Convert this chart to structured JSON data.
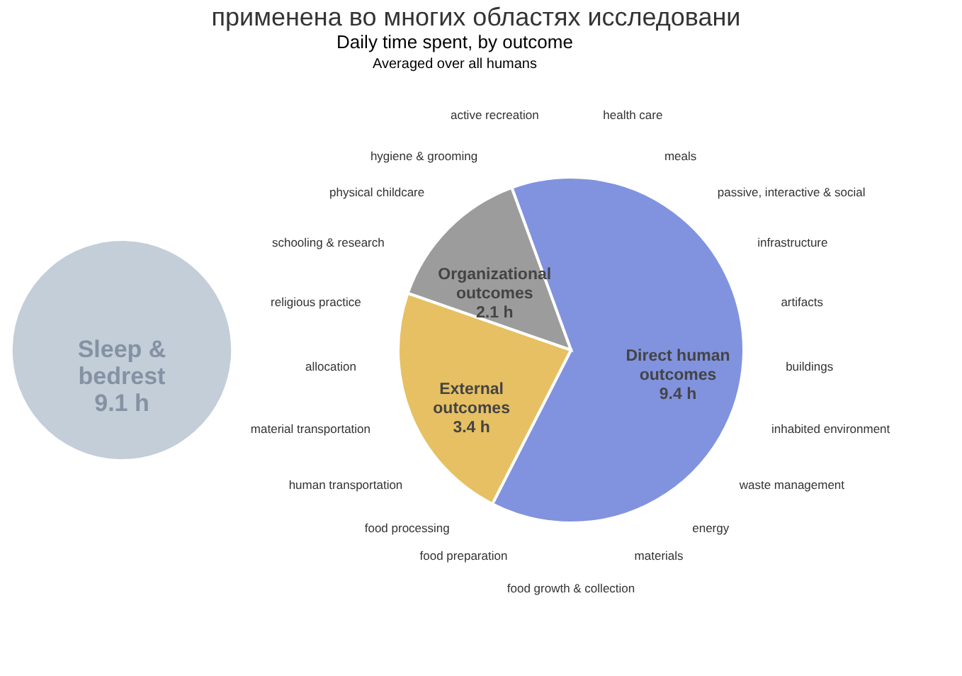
{
  "chart_data": {
    "type": "other",
    "title": "Daily time spent, by outcome",
    "subtitle": "Averaged over all humans",
    "categories": [
      "Sleep & bedrest",
      "Direct human outcomes",
      "External outcomes",
      "Organizational outcomes"
    ],
    "values": [
      9.1,
      9.4,
      3.4,
      2.1
    ],
    "value_labels": [
      "9.1 h",
      "9.4 h",
      "3.4 h",
      "2.1 h"
    ],
    "colors": [
      "#c3ced9",
      "#8193df",
      "#e6c063",
      "#9c9c9c"
    ],
    "annotations": [
      "применена во многих областях исследовани",
      "health care",
      "meals",
      "passive, interactive & social",
      "infrastructure",
      "artifacts",
      "buildings",
      "inhabited environment",
      "waste management",
      "energy",
      "materials",
      "food growth & collection",
      "food preparation",
      "food processing",
      "human transportation",
      "material transportation",
      "allocation",
      "religious practice",
      "schooling & research",
      "physical childcare",
      "hygiene & grooming",
      "active recreation"
    ]
  }
}
